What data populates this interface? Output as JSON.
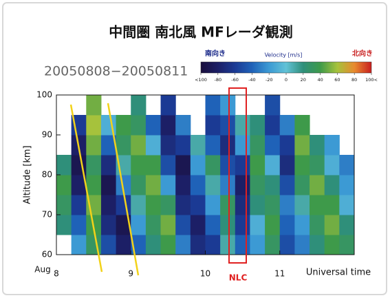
{
  "chart_data": {
    "type": "heatmap",
    "title": "中間圏 南北風 MFレーダ観測",
    "subtitle": "20050808−20050811",
    "x_label": "Universal time",
    "x_prefix": "Aug",
    "y_label": "Altitude [km]",
    "annotation": "NLC",
    "colorbar": {
      "label": "Velocity [m/s]",
      "left_label": "南向き",
      "right_label": "北向き",
      "ticks": [
        {
          "value": -100,
          "label": "<100"
        },
        -80,
        -60,
        -40,
        -20,
        0,
        20,
        40,
        60,
        80,
        {
          "value": 100,
          "label": "100<"
        }
      ]
    },
    "colorscale": [
      "#1a0f3c",
      "#1c1f66",
      "#1b3a94",
      "#1f62b8",
      "#3c9ad4",
      "#62c2d6",
      "#2f8f7a",
      "#3e9a4a",
      "#a6c23c",
      "#e88a2e",
      "#c81e1e"
    ],
    "zlim": [
      -100,
      100
    ],
    "xlim": [
      8,
      12
    ],
    "xticks": [
      8,
      9,
      10,
      11
    ],
    "ylim": [
      60,
      100
    ],
    "yticks": [
      60,
      70,
      80,
      90,
      100
    ],
    "x": [
      8.0,
      8.2,
      8.4,
      8.6,
      8.8,
      9.0,
      9.2,
      9.4,
      9.6,
      9.8,
      10.0,
      10.2,
      10.4,
      10.6,
      10.8,
      11.0,
      11.2,
      11.4,
      11.6,
      11.8
    ],
    "y": [
      60,
      65,
      70,
      75,
      80,
      85,
      90,
      95
    ],
    "z": [
      [
        null,
        -20,
        30,
        -50,
        -80,
        -40,
        20,
        40,
        -30,
        -70,
        -60,
        10,
        -40,
        -20,
        30,
        -50,
        -30,
        20,
        40,
        30
      ],
      [
        20,
        -40,
        40,
        -70,
        -90,
        -20,
        30,
        50,
        -50,
        -80,
        -40,
        20,
        -60,
        -10,
        40,
        -40,
        -20,
        30,
        50,
        20
      ],
      [
        30,
        -60,
        50,
        -80,
        -60,
        10,
        40,
        30,
        -70,
        -60,
        -20,
        30,
        -70,
        20,
        30,
        -30,
        10,
        40,
        40,
        -10
      ],
      [
        40,
        -80,
        40,
        -90,
        -30,
        30,
        50,
        -20,
        -80,
        -40,
        10,
        -30,
        -80,
        30,
        20,
        -50,
        30,
        50,
        20,
        -20
      ],
      [
        20,
        -90,
        30,
        -70,
        10,
        40,
        40,
        -50,
        -90,
        -20,
        30,
        -50,
        -60,
        40,
        -10,
        -70,
        40,
        30,
        -10,
        -30
      ],
      [
        null,
        -80,
        50,
        -40,
        30,
        50,
        -10,
        -70,
        -60,
        10,
        -40,
        -70,
        -20,
        30,
        -40,
        -60,
        50,
        20,
        -20,
        null
      ],
      [
        null,
        -60,
        60,
        -10,
        40,
        30,
        -40,
        -80,
        -30,
        null,
        -60,
        -50,
        10,
        20,
        -60,
        -30,
        40,
        null,
        null,
        null
      ],
      [
        null,
        null,
        50,
        null,
        null,
        20,
        null,
        -60,
        null,
        null,
        -40,
        -20,
        null,
        null,
        -50,
        null,
        null,
        null,
        null,
        null
      ]
    ]
  }
}
